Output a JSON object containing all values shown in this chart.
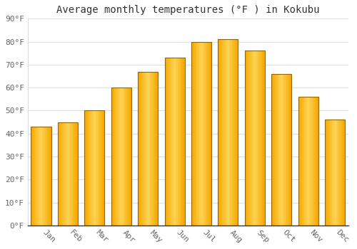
{
  "title": "Average monthly temperatures (°F ) in Kokubu",
  "months": [
    "Jan",
    "Feb",
    "Mar",
    "Apr",
    "May",
    "Jun",
    "Jul",
    "Aug",
    "Sep",
    "Oct",
    "Nov",
    "Dec"
  ],
  "values": [
    43,
    45,
    50,
    60,
    67,
    73,
    80,
    81,
    76,
    66,
    56,
    46
  ],
  "bar_color_left": "#F5A800",
  "bar_color_center": "#FFD455",
  "bar_color_right": "#F5A800",
  "bar_edge_color": "#888800",
  "ylim": [
    0,
    90
  ],
  "ytick_step": 10,
  "background_color": "#ffffff",
  "plot_bg_color": "#ffffff",
  "grid_color": "#e0e0e0",
  "title_fontsize": 10,
  "tick_fontsize": 8,
  "x_tick_rotation": -45
}
